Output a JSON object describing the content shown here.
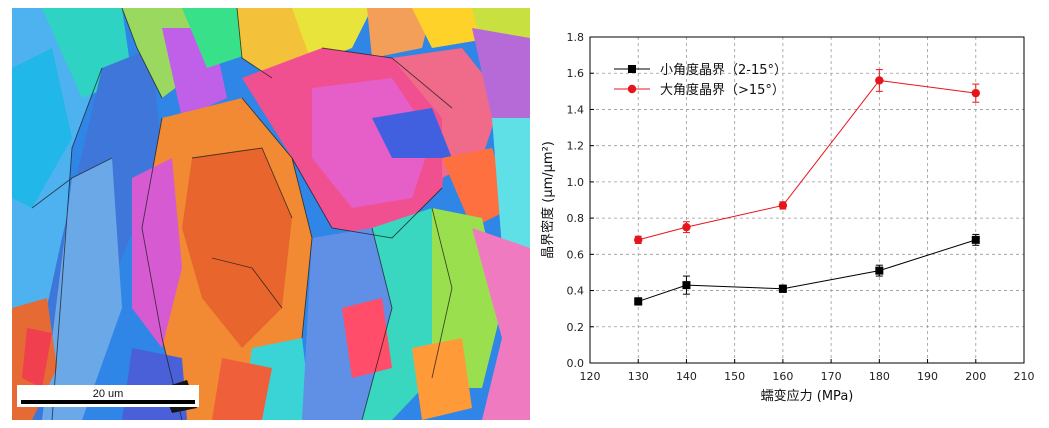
{
  "micrograph": {
    "scale_bar_label": "20 um"
  },
  "chart_data": {
    "type": "line",
    "title": "",
    "xlabel": "蠕变应力 (MPa)",
    "ylabel": "晶界密度 (μm/μm²)",
    "xlim": [
      120,
      210
    ],
    "ylim": [
      0.0,
      1.8
    ],
    "x_ticks": [
      120,
      130,
      140,
      150,
      160,
      170,
      180,
      190,
      200,
      210
    ],
    "y_ticks": [
      0.0,
      0.2,
      0.4,
      0.6,
      0.8,
      1.0,
      1.2,
      1.4,
      1.6,
      1.8
    ],
    "grid": true,
    "legend_position": "top-left",
    "series": [
      {
        "name": "小角度晶界（2-15°）",
        "color": "#000000",
        "marker": "square",
        "x": [
          130,
          140,
          160,
          180,
          200
        ],
        "y": [
          0.34,
          0.43,
          0.41,
          0.51,
          0.68
        ],
        "err": [
          0.02,
          0.05,
          0.02,
          0.03,
          0.03
        ]
      },
      {
        "name": "大角度晶界（>15°）",
        "color": "#e8141b",
        "marker": "circle",
        "x": [
          130,
          140,
          160,
          180,
          200
        ],
        "y": [
          0.68,
          0.75,
          0.87,
          1.56,
          1.49
        ],
        "err": [
          0.02,
          0.03,
          0.02,
          0.06,
          0.05
        ]
      }
    ]
  }
}
